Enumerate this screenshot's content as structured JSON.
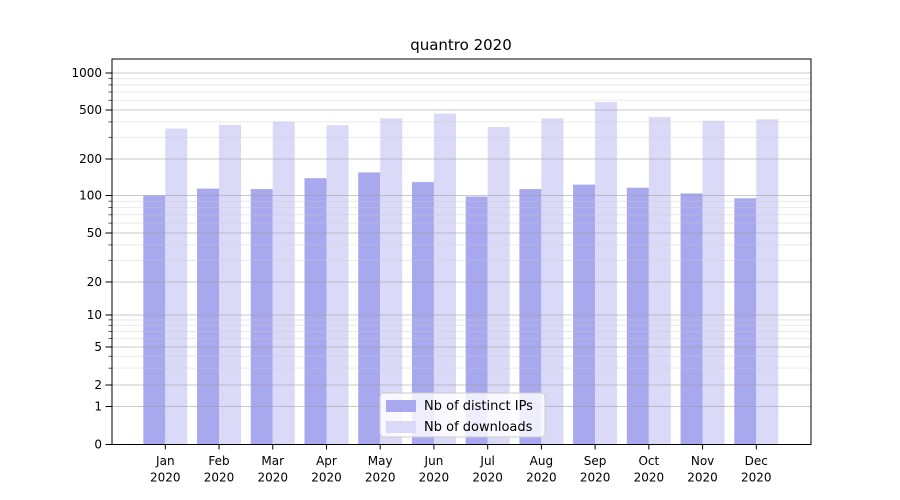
{
  "title": "quantro 2020",
  "chart_data": {
    "type": "bar",
    "title": "quantro 2020",
    "scale": "pseudo-log (symlog-like) y axis",
    "categories": [
      "Jan",
      "Feb",
      "Mar",
      "Apr",
      "May",
      "Jun",
      "Jul",
      "Aug",
      "Sep",
      "Oct",
      "Nov",
      "Dec"
    ],
    "x_year": "2020",
    "series": [
      {
        "name": "Nb of distinct IPs",
        "color": "#a8a8ef",
        "values": [
          100,
          114,
          113,
          139,
          155,
          129,
          98,
          113,
          123,
          116,
          104,
          95
        ]
      },
      {
        "name": "Nb of downloads",
        "color": "#dadaf8",
        "values": [
          354,
          378,
          403,
          377,
          428,
          467,
          364,
          428,
          580,
          438,
          409,
          420
        ]
      }
    ],
    "y_ticks": [
      0,
      1,
      2,
      5,
      10,
      20,
      50,
      100,
      200,
      500,
      1000
    ],
    "y_minor_ticks": [
      3,
      4,
      6,
      7,
      8,
      9,
      30,
      40,
      60,
      70,
      80,
      90,
      300,
      400,
      600,
      700,
      800,
      900
    ],
    "ylim": [
      0,
      1300
    ],
    "xlabel": "",
    "ylabel": "",
    "grid": "on",
    "legend_position": "bottom-center"
  },
  "colors": {
    "background": "#ffffff",
    "axis": "#000000",
    "grid_major": "#9e9e9e",
    "grid_minor": "#c9c9c9",
    "legend_border": "#cccccc",
    "legend_background": "#ffffff"
  }
}
